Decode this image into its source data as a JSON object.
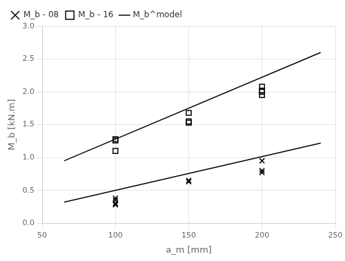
{
  "chart_data": {
    "type": "scatter",
    "xlabel": "a_m [mm]",
    "ylabel": "M_b [kN.m]",
    "xlim": [
      50,
      250
    ],
    "ylim": [
      0,
      3
    ],
    "xticks": [
      50,
      100,
      150,
      200,
      250
    ],
    "yticks": [
      {
        "value": 0,
        "label": "0.0"
      },
      0.5,
      {
        "value": 1,
        "label": "1.0"
      },
      1.5,
      {
        "value": 2,
        "label": "2.0"
      },
      2.5,
      {
        "value": 3,
        "label": "3.0"
      }
    ],
    "grid": true,
    "legend": "upper left",
    "series": [
      {
        "name": "M_b - 08",
        "type": "scatter",
        "marker": "x",
        "color": "black",
        "x": [
          100,
          100,
          100,
          100,
          150,
          150,
          200,
          200,
          200
        ],
        "values": [
          0.38,
          0.35,
          0.3,
          0.28,
          0.65,
          0.63,
          0.95,
          0.8,
          0.77
        ]
      },
      {
        "name": "M_b - 16",
        "type": "scatter",
        "marker": "square",
        "color": "black",
        "x": [
          100,
          100,
          100,
          150,
          150,
          150,
          200,
          200,
          200,
          200
        ],
        "values": [
          1.28,
          1.26,
          1.1,
          1.68,
          1.55,
          1.53,
          2.08,
          2.02,
          2.0,
          1.95
        ]
      },
      {
        "name": "M_b^model",
        "type": "line",
        "line_style": "solid",
        "color": "black",
        "x": [
          65,
          240
        ],
        "values": [
          0.32,
          1.22
        ]
      },
      {
        "type": "line",
        "line_style": "solid",
        "color": "black",
        "x": [
          65,
          240
        ],
        "values": [
          0.95,
          2.6
        ]
      }
    ]
  }
}
